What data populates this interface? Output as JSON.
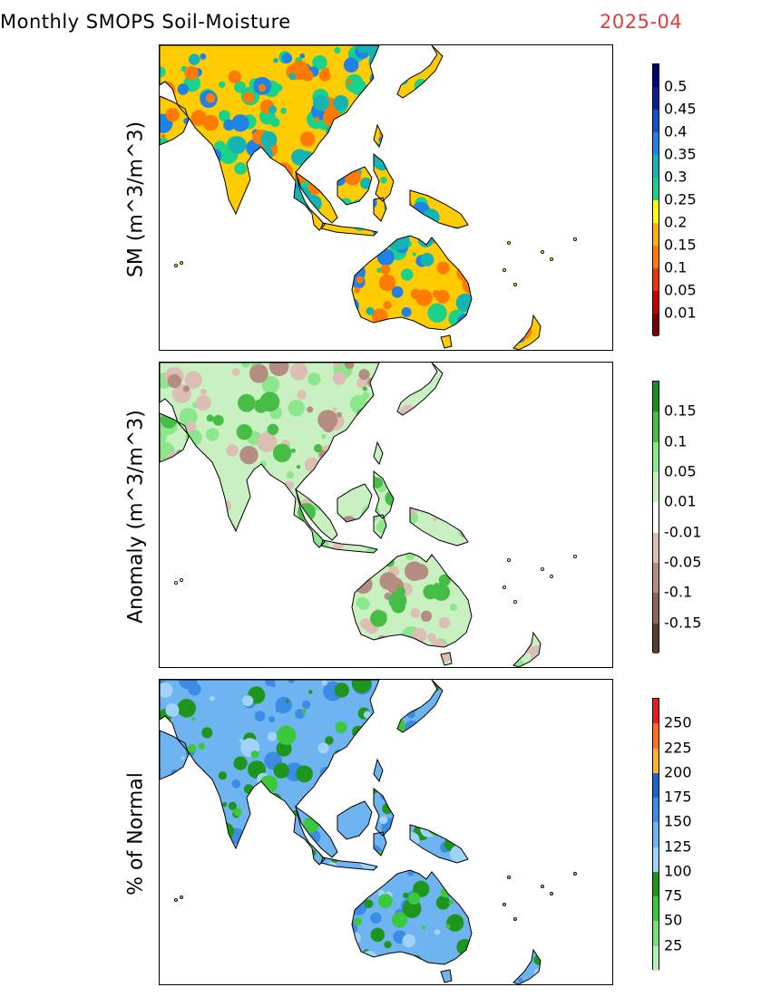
{
  "title": "Monthly SMOPS Soil-Moisture",
  "date": "2025-04",
  "panels": [
    {
      "id": "sm",
      "ylabel": "SM (m^3/m^3)",
      "colors": [
        "#7a0000",
        "#c40000",
        "#e63800",
        "#ff7a00",
        "#ffb400",
        "#ffff00",
        "#1ad28a",
        "#14b4b4",
        "#1e82e6",
        "#1450c8",
        "#0a1e96",
        "#00007a"
      ],
      "ticks": [
        "0.01",
        "0.05",
        "0.1",
        "0.15",
        "0.2",
        "0.25",
        "0.3",
        "0.35",
        "0.4",
        "0.45",
        "0.5"
      ]
    },
    {
      "id": "anomaly",
      "ylabel": "Anomaly (m^3/m^3)",
      "colors": [
        "#5a3c32",
        "#8c6458",
        "#b48c82",
        "#dcbeb4",
        "#ffffff",
        "#c8f0c0",
        "#8ce68c",
        "#46be46",
        "#1e8c1e"
      ],
      "ticks": [
        "-0.15",
        "-0.1",
        "-0.05",
        "-0.01",
        "0.01",
        "0.05",
        "0.1",
        "0.15"
      ]
    },
    {
      "id": "pct",
      "ylabel": "% of Normal",
      "colors": [
        "#b4f0b4",
        "#78dc78",
        "#3cc83c",
        "#1e961e",
        "#a0d2fa",
        "#6eb4f0",
        "#3c8ce6",
        "#1e64d2",
        "#ffb428",
        "#ff6e1e",
        "#e61e1e"
      ],
      "ticks": [
        "25",
        "50",
        "75",
        "100",
        "125",
        "150",
        "175",
        "200",
        "225",
        "250"
      ]
    }
  ]
}
